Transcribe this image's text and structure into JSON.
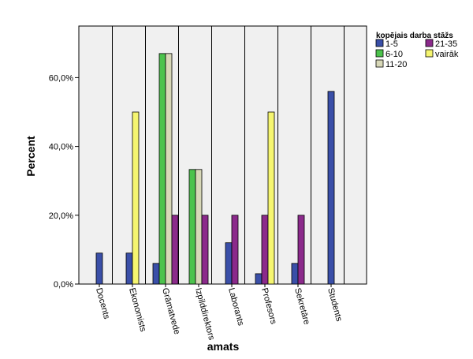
{
  "chart_data": {
    "type": "bar",
    "xlabel": "amats",
    "ylabel": "Percent",
    "ylim": [
      0,
      75
    ],
    "yticks": [
      {
        "value": 0,
        "label": "0,0%"
      },
      {
        "value": 20,
        "label": "20,0%"
      },
      {
        "value": 40,
        "label": "40,0%"
      },
      {
        "value": 60,
        "label": "60,0%"
      }
    ],
    "grid": false,
    "legend": {
      "title": "kopējais darba stāžs",
      "placement": "top-right",
      "items": [
        {
          "label": "1-5",
          "color": "#3a4fa8"
        },
        {
          "label": "21-35",
          "color": "#8b2a8b"
        },
        {
          "label": "6-10",
          "color": "#4cc34c"
        },
        {
          "label": "vairāk",
          "color": "#f5f570"
        },
        {
          "label": "11-20",
          "color": "#d8d8b8"
        }
      ]
    },
    "categories": [
      "Docents",
      "Ekonomists",
      "Grāmatvede",
      "Izpilddirektors",
      "Laborants",
      "Profesors",
      "Sekretāre",
      "Students"
    ],
    "series": [
      {
        "name": "1-5",
        "color": "#3a4fa8",
        "values": [
          9,
          9,
          6,
          null,
          12,
          3,
          6,
          56
        ]
      },
      {
        "name": "6-10",
        "color": "#4cc34c",
        "values": [
          null,
          null,
          67,
          33.3,
          null,
          null,
          null,
          null
        ]
      },
      {
        "name": "11-20",
        "color": "#d8d8b8",
        "values": [
          null,
          null,
          67,
          33.3,
          null,
          null,
          null,
          null
        ]
      },
      {
        "name": "21-35",
        "color": "#8b2a8b",
        "values": [
          null,
          null,
          20,
          20,
          20,
          20,
          20,
          null
        ]
      },
      {
        "name": "vairāk",
        "color": "#f5f570",
        "values": [
          null,
          50,
          null,
          null,
          null,
          50,
          null,
          null
        ]
      }
    ]
  }
}
